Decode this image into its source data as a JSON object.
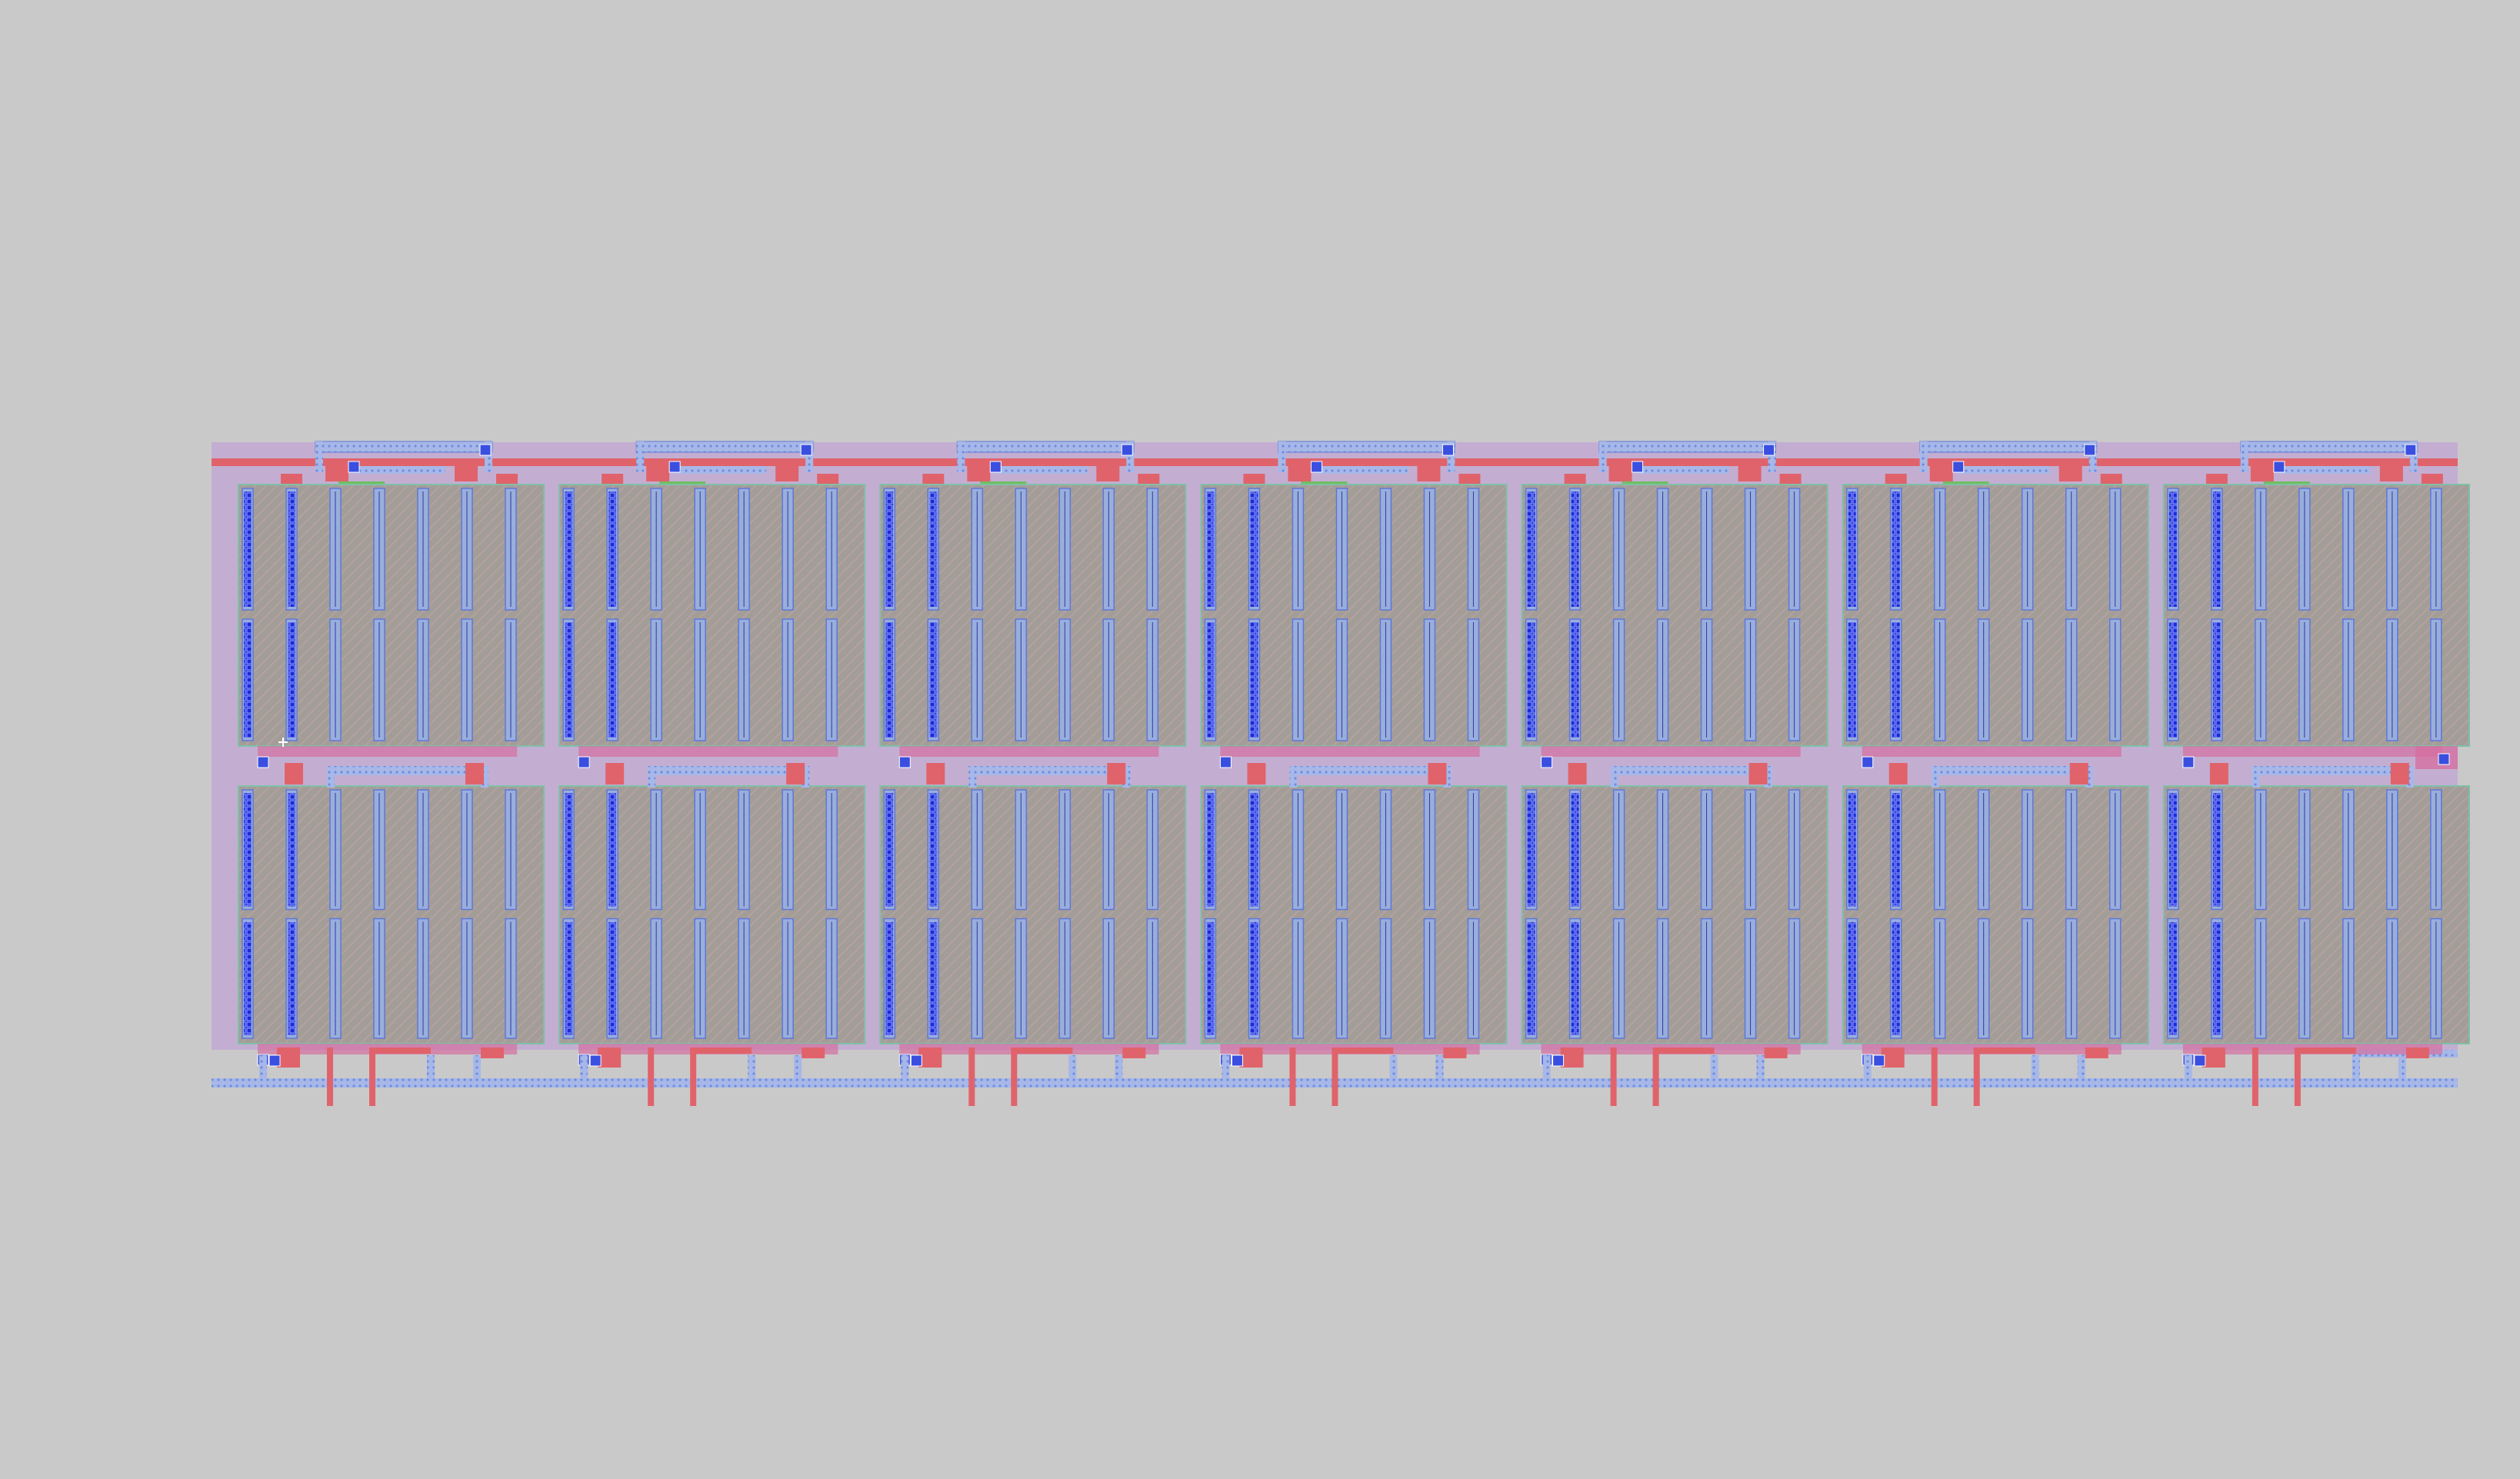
{
  "canvas": {
    "background": "#c9c9c9"
  },
  "layout_view": {
    "cells_per_row": 7,
    "fingers_per_cell": 7,
    "rows": [
      "top-row",
      "bottom-row"
    ],
    "layers": {
      "nwell": "#c3aed2",
      "poly": "#e0636b",
      "diffusion": "#9e9a96",
      "diffusion_hatch": "#b3a39a",
      "metal1": "#9aaedc",
      "metal1_edge": "#5e78d6",
      "via": "#2b2fd6",
      "contact_fill": "#3a4fe0",
      "diffusion_border": "#7fc0a8",
      "pwell_highlight": "#d46fa0",
      "green_marker": "#6fbf5f"
    }
  }
}
